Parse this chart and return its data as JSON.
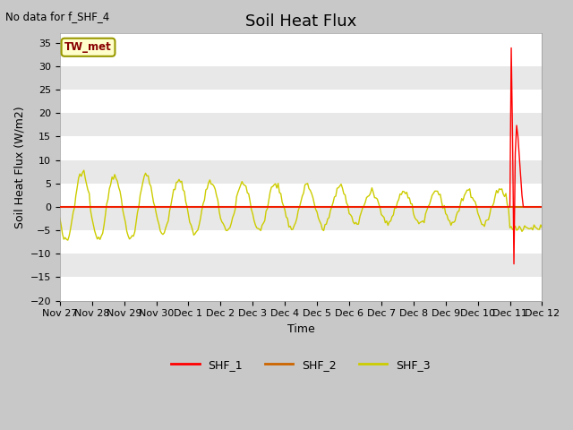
{
  "title": "Soil Heat Flux",
  "no_data_text": "No data for f_SHF_4",
  "ylabel": "Soil Heat Flux (W/m2)",
  "xlabel": "Time",
  "ylim": [
    -20,
    37
  ],
  "yticks": [
    -20,
    -15,
    -10,
    -5,
    0,
    5,
    10,
    15,
    20,
    25,
    30,
    35
  ],
  "fig_bg_color": "#c8c8c8",
  "plot_bg_color": "#ffffff",
  "legend_labels": [
    "SHF_1",
    "SHF_2",
    "SHF_3"
  ],
  "legend_colors": [
    "#ff0000",
    "#cc6600",
    "#cccc00"
  ],
  "tw_met_label": "TW_met",
  "tw_met_bg": "#ffffcc",
  "tw_met_edge": "#999900",
  "tw_met_text_color": "#880000",
  "title_fontsize": 13,
  "label_fontsize": 9,
  "tick_fontsize": 8,
  "xtick_labels": [
    "Nov 27",
    "Nov 28",
    "Nov 29",
    "Nov 30",
    "Dec 1",
    "Dec 2",
    "Dec 3",
    "Dec 4",
    "Dec 5",
    "Dec 6",
    "Dec 7",
    "Dec 8",
    "Dec 9",
    "Dec 10",
    "Dec 11",
    "Dec 12"
  ],
  "grid_color": "#e0e0e0"
}
